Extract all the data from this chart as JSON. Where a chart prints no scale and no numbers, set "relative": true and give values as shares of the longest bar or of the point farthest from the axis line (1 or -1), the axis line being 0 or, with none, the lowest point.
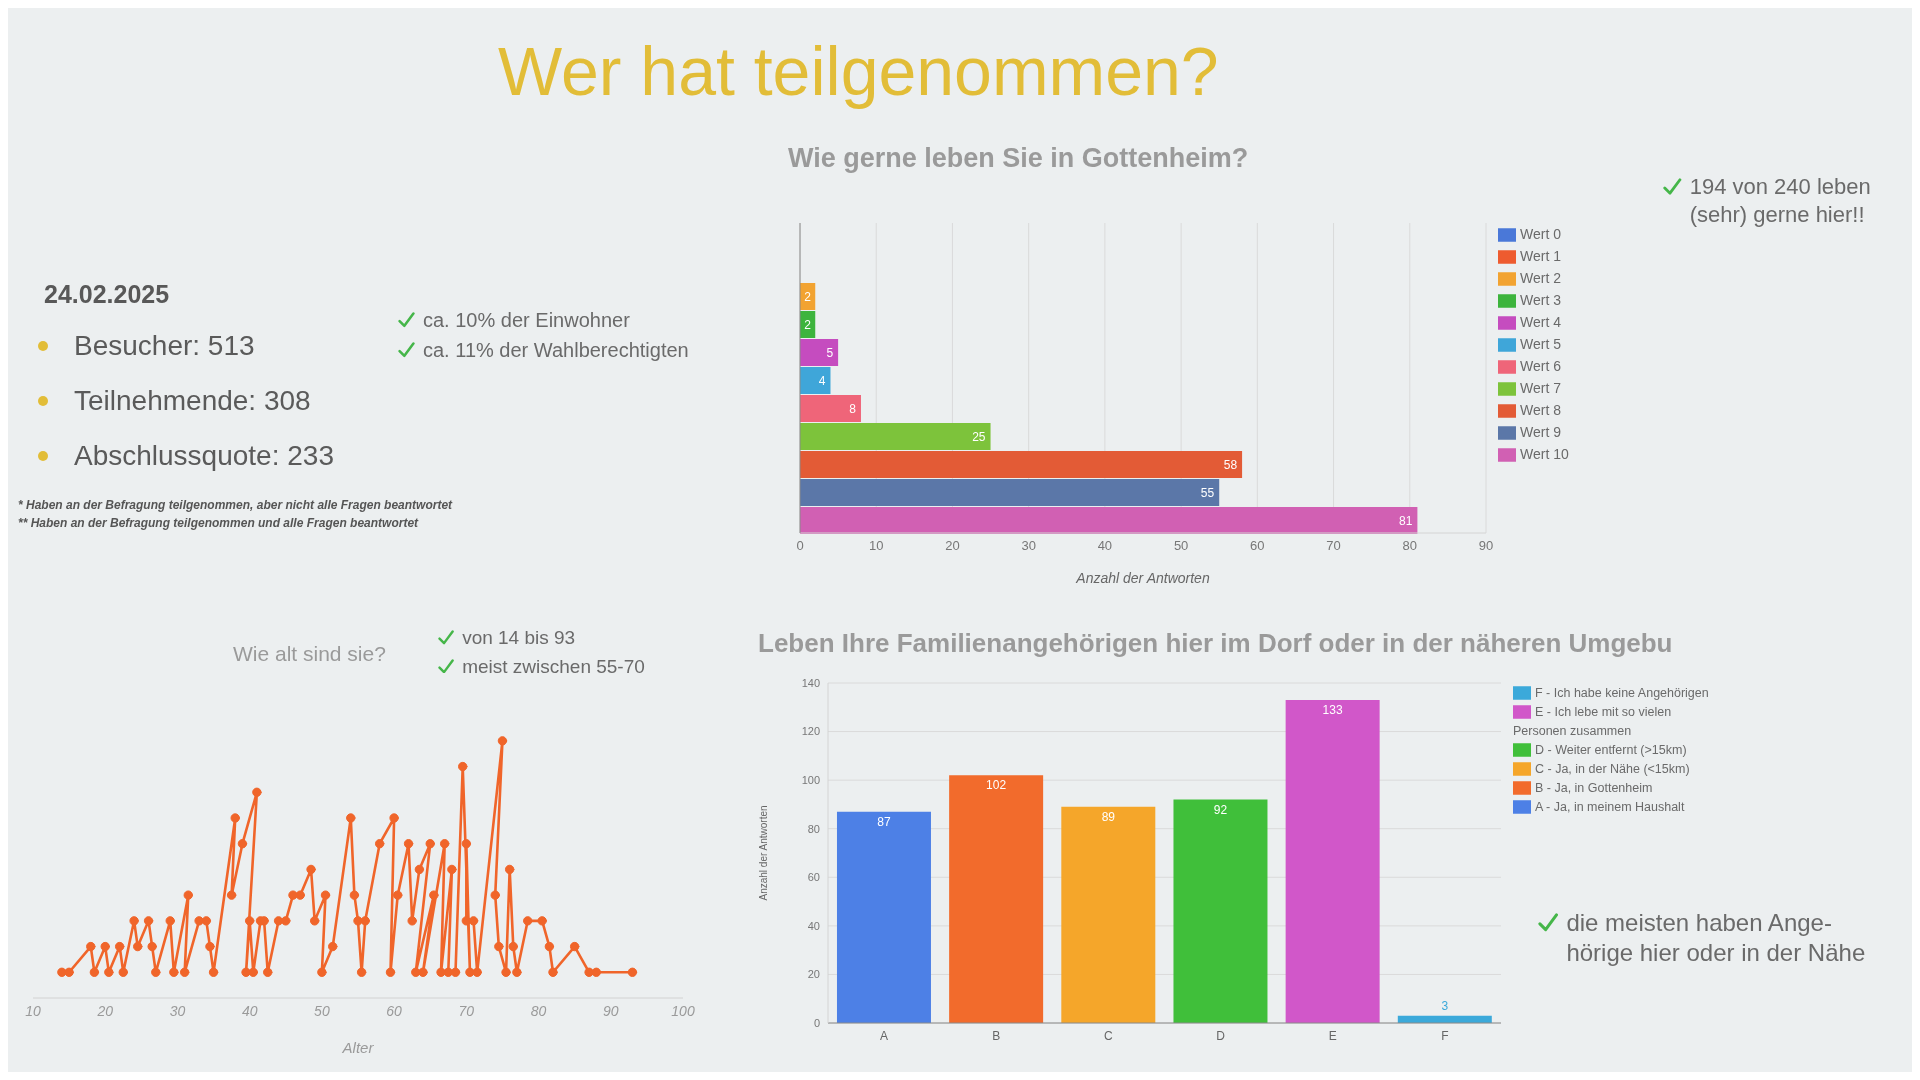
{
  "chart_data": [
    {
      "type": "other",
      "title": "Wer hat teilgenommen?",
      "subtitle": "24.02.2025",
      "annotations": [
        "Besucher: 513",
        "Teilnehmende: 308",
        "Abschlussquote: 233",
        "* Haben an der Befragung teilgenommen, aber nicht alle Fragen beantwortet",
        "** Haben an der Befragung teilgenommen und alle Fragen beantwortet",
        "ca. 10% der Einwohner",
        "ca. 11% der Wahlberechtigten"
      ]
    },
    {
      "type": "bar",
      "orientation": "horizontal",
      "title": "Wie gerne leben Sie in Gottenheim?",
      "xlabel": "Anzahl der Antworten",
      "categories": [
        null
      ],
      "series": [
        {
          "name": "Wert 0",
          "color": "#4a78d8",
          "values": [
            0
          ],
          "value_labels": [
            null
          ]
        },
        {
          "name": "Wert 1",
          "color": "#ee5b2f",
          "values": [
            0
          ],
          "value_labels": [
            null
          ]
        },
        {
          "name": "Wert 2",
          "color": "#f2a331",
          "values": [
            2
          ],
          "value_labels": [
            "2"
          ]
        },
        {
          "name": "Wert 3",
          "color": "#3db43d",
          "values": [
            2
          ],
          "value_labels": [
            "2"
          ]
        },
        {
          "name": "Wert 4",
          "color": "#c54cbf",
          "values": [
            5
          ],
          "value_labels": [
            "5"
          ]
        },
        {
          "name": "Wert 5",
          "color": "#3fa6d9",
          "values": [
            4
          ],
          "value_labels": [
            "4"
          ]
        },
        {
          "name": "Wert 6",
          "color": "#ef6579",
          "values": [
            8
          ],
          "value_labels": [
            "8"
          ]
        },
        {
          "name": "Wert 7",
          "color": "#7dc33b",
          "values": [
            25
          ],
          "value_labels": [
            "25"
          ]
        },
        {
          "name": "Wert 8",
          "color": "#e35b36",
          "values": [
            58
          ],
          "value_labels": [
            "58"
          ]
        },
        {
          "name": "Wert 9",
          "color": "#5b77a8",
          "values": [
            55
          ],
          "value_labels": [
            "55"
          ]
        },
        {
          "name": "Wert 10",
          "color": "#d160b3",
          "values": [
            81
          ],
          "value_labels": [
            "81"
          ]
        }
      ],
      "xlim": [
        0,
        90
      ],
      "xticks": [
        0,
        10,
        20,
        30,
        40,
        50,
        60,
        70,
        80,
        90
      ],
      "grid": "x",
      "legend": "top right",
      "annotations": [
        "194 von 240 leben (sehr) gerne hier!!"
      ]
    },
    {
      "type": "line",
      "title": "Wie alt sind sie?",
      "xlabel": "Alter",
      "relative": true,
      "color": "#f0652a",
      "marker": "circle",
      "line_style": "solid",
      "x": [
        14,
        15,
        18,
        18.5,
        20,
        20.5,
        22,
        22.5,
        24,
        24.5,
        26,
        26.5,
        27,
        29,
        29.5,
        31.5,
        31,
        33,
        34,
        34.5,
        35,
        38,
        37.5,
        39,
        41,
        39.5,
        40,
        40.5,
        41.5,
        42,
        42.5,
        44,
        45,
        46,
        47,
        48.5,
        49,
        50.5,
        50,
        51.5,
        54,
        54.5,
        55,
        55.5,
        56,
        58,
        60,
        59.5,
        60.5,
        62,
        62.5,
        63.5,
        65,
        63,
        65.5,
        64,
        67,
        66.5,
        68,
        67.5,
        68.5,
        69.5,
        70.5,
        70,
        70,
        71,
        71.5,
        75,
        74,
        74.5,
        75.5,
        76,
        76.5,
        77,
        78.5,
        80.5,
        81.5,
        82,
        85,
        87,
        88,
        93
      ],
      "values": [
        0.1,
        0.1,
        0.2,
        0.1,
        0.2,
        0.1,
        0.2,
        0.1,
        0.3,
        0.2,
        0.3,
        0.2,
        0.1,
        0.3,
        0.1,
        0.4,
        0.1,
        0.3,
        0.3,
        0.2,
        0.1,
        0.7,
        0.4,
        0.6,
        0.8,
        0.1,
        0.3,
        0.1,
        0.3,
        0.3,
        0.1,
        0.3,
        0.3,
        0.4,
        0.4,
        0.5,
        0.3,
        0.4,
        0.1,
        0.2,
        0.7,
        0.4,
        0.3,
        0.1,
        0.3,
        0.6,
        0.7,
        0.1,
        0.4,
        0.6,
        0.3,
        0.5,
        0.6,
        0.1,
        0.4,
        0.1,
        0.6,
        0.1,
        0.5,
        0.1,
        0.1,
        0.9,
        0.1,
        0.6,
        0.3,
        0.3,
        0.1,
        1,
        0.4,
        0.2,
        0.1,
        0.5,
        0.2,
        0.1,
        0.3,
        0.3,
        0.2,
        0.1,
        0.2,
        0.1,
        0.1,
        0.1
      ],
      "xlim": [
        10,
        100
      ],
      "xticks": [
        10,
        20,
        30,
        40,
        50,
        60,
        70,
        80,
        90,
        100
      ],
      "annotations": [
        "von 14 bis 93",
        "meist zwischen 55-70"
      ]
    },
    {
      "type": "bar",
      "title": "Leben Ihre Familienangehörigen hier im Dorf oder in der näheren Umgebu",
      "ylabel": "Anzahl der Antworten",
      "categories": [
        "A",
        "B",
        "C",
        "D",
        "E",
        "F"
      ],
      "stacked": true,
      "series": [
        {
          "name": "F - Ich habe keine Angehörigen",
          "color": "#3ba9da",
          "values": [
            null,
            null,
            null,
            null,
            null,
            3
          ]
        },
        {
          "name": "E - Ich lebe mit so vielen Personen zusammen",
          "color": "#d157c9",
          "values": [
            null,
            null,
            null,
            null,
            133,
            null
          ]
        },
        {
          "name": "D - Weiter entfernt (>15km)",
          "color": "#40bf3a",
          "values": [
            null,
            null,
            null,
            92,
            null,
            null
          ]
        },
        {
          "name": "C - Ja, in der Nähe (<15km)",
          "color": "#f5a62a",
          "values": [
            null,
            null,
            89,
            null,
            null,
            null
          ]
        },
        {
          "name": "B - Ja, in Gottenheim",
          "color": "#f26b2c",
          "values": [
            null,
            102,
            null,
            null,
            null,
            null
          ]
        },
        {
          "name": "A - Ja, in meinem Haushalt",
          "color": "#4d80e6",
          "values": [
            87,
            null,
            null,
            null,
            null,
            null
          ]
        }
      ],
      "ylim": [
        0,
        140
      ],
      "yticks": [
        0,
        20,
        40,
        60,
        80,
        100,
        120,
        140
      ],
      "grid": "y",
      "legend": "top right",
      "data_labels": true,
      "annotations": [
        "die meisten haben Ange-\nhörige hier oder in der Nähe"
      ]
    }
  ]
}
